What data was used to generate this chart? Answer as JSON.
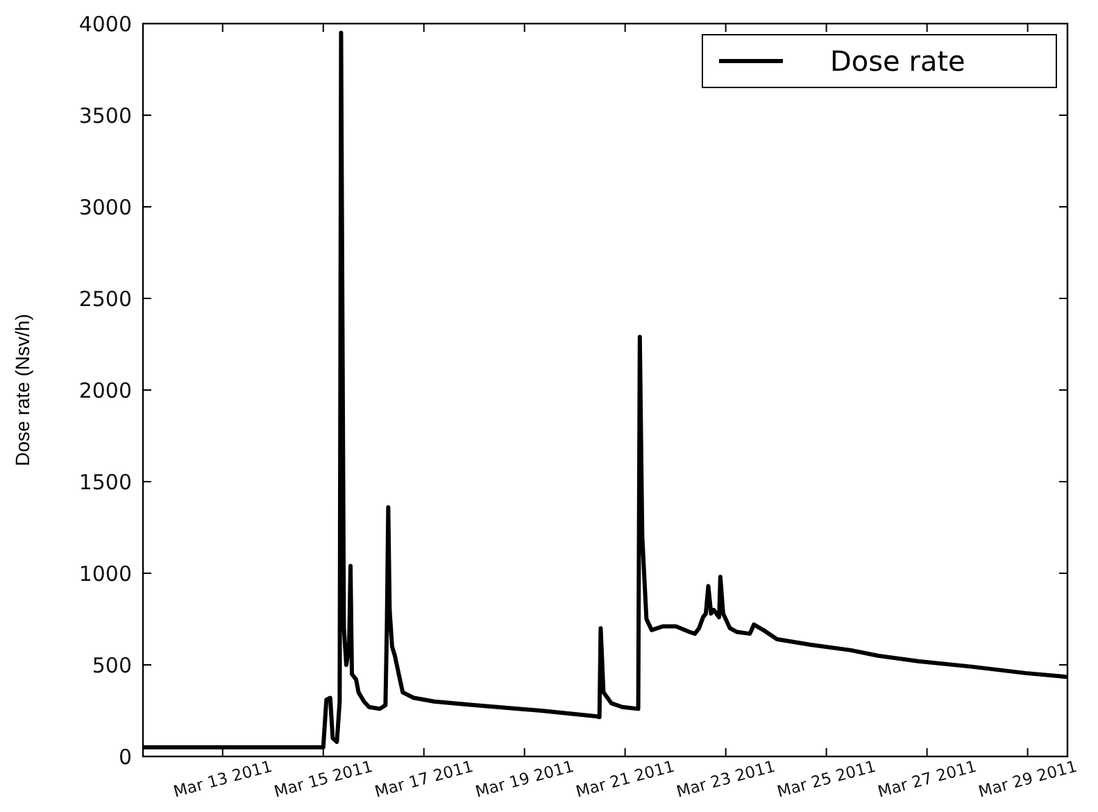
{
  "chart_data": {
    "type": "line",
    "ylabel": "Dose rate (Nsv/h)",
    "xlim": [
      "2011-03-11T10:00",
      "2011-03-29T19:00"
    ],
    "ylim": [
      0,
      4000
    ],
    "yticks": [
      0,
      500,
      1000,
      1500,
      2000,
      2500,
      3000,
      3500,
      4000
    ],
    "xticks": [
      {
        "value": "2011-03-13",
        "label": "Mar 13 2011"
      },
      {
        "value": "2011-03-15",
        "label": "Mar 15 2011"
      },
      {
        "value": "2011-03-17",
        "label": "Mar 17 2011"
      },
      {
        "value": "2011-03-19",
        "label": "Mar 19 2011"
      },
      {
        "value": "2011-03-21",
        "label": "Mar 21 2011"
      },
      {
        "value": "2011-03-23",
        "label": "Mar 23 2011"
      },
      {
        "value": "2011-03-25",
        "label": "Mar 25 2011"
      },
      {
        "value": "2011-03-27",
        "label": "Mar 27 2011"
      },
      {
        "value": "2011-03-29",
        "label": "Mar 29 2011"
      }
    ],
    "grid": false,
    "legend": "top right",
    "marker": "none",
    "line_style": "solid",
    "x": [
      "2011-03-11T10:00",
      "2011-03-15T00:00",
      "2011-03-15T01:30",
      "2011-03-15T03:20",
      "2011-03-15T04:30",
      "2011-03-15T06:30",
      "2011-03-15T07:50",
      "2011-03-15T08:30",
      "2011-03-15T09:50",
      "2011-03-15T11:00",
      "2011-03-15T12:20",
      "2011-03-15T13:00",
      "2011-03-15T13:40",
      "2011-03-15T15:40",
      "2011-03-15T16:50",
      "2011-03-15T19:25",
      "2011-03-15T21:50",
      "2011-03-16T03:00",
      "2011-03-16T05:40",
      "2011-03-16T06:20",
      "2011-03-16T07:00",
      "2011-03-16T07:40",
      "2011-03-16T08:50",
      "2011-03-16T10:10",
      "2011-03-16T12:00",
      "2011-03-16T13:55",
      "2011-03-16T19:10",
      "2011-03-17T04:50",
      "2011-03-18T00:00",
      "2011-03-19T08:00",
      "2011-03-20T09:50",
      "2011-03-20T11:45",
      "2011-03-20T12:20",
      "2011-03-20T13:40",
      "2011-03-20T17:30",
      "2011-03-20T22:40",
      "2011-03-21T06:15",
      "2011-03-21T07:00",
      "2011-03-21T08:10",
      "2011-03-21T10:10",
      "2011-03-21T12:40",
      "2011-03-21T17:50",
      "2011-03-22T00:15",
      "2011-03-22T06:40",
      "2011-03-22T09:15",
      "2011-03-22T11:15",
      "2011-03-22T13:10",
      "2011-03-22T14:30",
      "2011-03-22T15:40",
      "2011-03-22T17:00",
      "2011-03-22T18:15",
      "2011-03-22T20:50",
      "2011-03-22T21:25",
      "2011-03-22T22:45",
      "2011-03-23T02:00",
      "2011-03-23T05:10",
      "2011-03-23T11:30",
      "2011-03-23T13:25",
      "2011-03-23T17:55",
      "2011-03-24T00:25",
      "2011-03-24T16:25",
      "2011-03-25T11:40",
      "2011-03-26T00:30",
      "2011-03-26T19:45",
      "2011-03-27T21:20",
      "2011-03-28T23:00",
      "2011-03-29T18:15"
    ],
    "series": [
      {
        "name": "Dose rate",
        "color": "#000000",
        "values": [
          50,
          50,
          310,
          320,
          100,
          80,
          300,
          3950,
          700,
          500,
          600,
          1040,
          450,
          420,
          350,
          300,
          270,
          260,
          280,
          700,
          1360,
          800,
          600,
          550,
          450,
          350,
          320,
          300,
          280,
          250,
          220,
          215,
          700,
          350,
          290,
          270,
          260,
          2290,
          1200,
          750,
          690,
          710,
          710,
          680,
          670,
          700,
          760,
          780,
          930,
          780,
          800,
          760,
          980,
          780,
          700,
          680,
          670,
          720,
          690,
          640,
          610,
          580,
          550,
          520,
          490,
          455,
          435
        ]
      }
    ]
  }
}
